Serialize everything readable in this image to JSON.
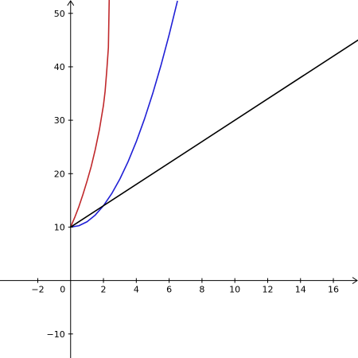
{
  "chart_data": {
    "type": "line",
    "title": "",
    "xlabel": "",
    "ylabel": "",
    "xlim": [
      -4.3,
      17.5
    ],
    "ylim": [
      -14.5,
      52.5
    ],
    "grid": false,
    "x_ticks": [
      -2,
      0,
      2,
      4,
      6,
      8,
      10,
      12,
      14,
      16
    ],
    "x_tick_labels": [
      "−2",
      "0",
      "2",
      "4",
      "6",
      "8",
      "10",
      "12",
      "14",
      "16"
    ],
    "y_ticks": [
      -10,
      10,
      20,
      30,
      40,
      50
    ],
    "y_tick_labels": [
      "−10",
      "10",
      "20",
      "30",
      "40",
      "50"
    ],
    "series": [
      {
        "color": "#c0282b",
        "x": [
          0,
          0.25,
          0.5,
          0.75,
          1,
          1.25,
          1.5,
          1.75,
          2,
          2.1,
          2.2,
          2.3,
          2.35
        ],
        "y": [
          10,
          11.8,
          13.8,
          16.1,
          18.6,
          21.3,
          24.5,
          28.2,
          32.8,
          35.4,
          39.2,
          43.6,
          52.5
        ]
      },
      {
        "color": "#1f1fd6",
        "x": [
          0,
          0.5,
          1,
          1.5,
          2,
          2.5,
          3,
          3.5,
          4,
          4.5,
          5,
          5.5,
          6,
          6.5
        ],
        "y": [
          10,
          10.25,
          11,
          12.25,
          14,
          16.25,
          19,
          22.25,
          26,
          30.25,
          35,
          40.25,
          46,
          52.25
        ]
      },
      {
        "color": "#000000",
        "x": [
          0,
          17.5
        ],
        "y": [
          10,
          45
        ]
      }
    ]
  }
}
